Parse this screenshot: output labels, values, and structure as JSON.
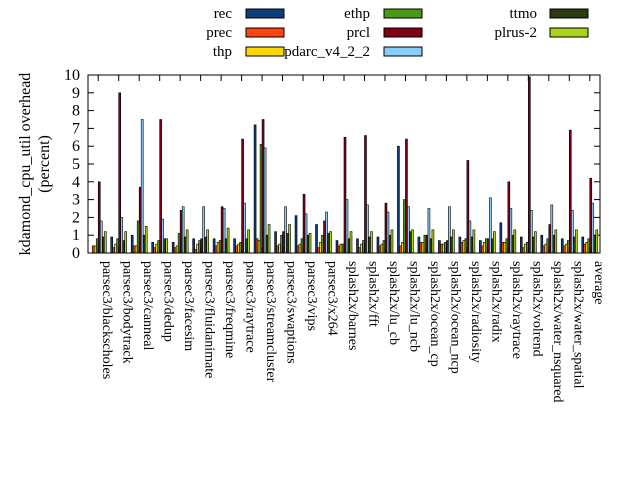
{
  "chart_data": {
    "type": "bar",
    "title": "",
    "xlabel": "",
    "ylabel_lines": [
      "kdamond_cpu_util overhead",
      "(percent)"
    ],
    "ylim": [
      0,
      10
    ],
    "yticks": [
      "0",
      "1",
      "2",
      "3",
      "4",
      "5",
      "6",
      "7",
      "8",
      "9",
      "10"
    ],
    "grid": false,
    "legend_position": "top",
    "categories": [
      "parsec3/blackscholes",
      "parsec3/bodytrack",
      "parsec3/canneal",
      "parsec3/dedup",
      "parsec3/facesim",
      "parsec3/fluidanimate",
      "parsec3/freqmine",
      "parsec3/raytrace",
      "parsec3/streamcluster",
      "parsec3/swaptions",
      "parsec3/vips",
      "parsec3/x264",
      "splash2x/barnes",
      "splash2x/fft",
      "splash2x/lu_cb",
      "splash2x/lu_ncb",
      "splash2x/ocean_cp",
      "splash2x/ocean_ncp",
      "splash2x/radiosity",
      "splash2x/radix",
      "splash2x/raytrace",
      "splash2x/volrend",
      "splash2x/water_nsquared",
      "splash2x/water_spatial",
      "average"
    ],
    "series": [
      {
        "name": "rec",
        "color": "#0b3d7a",
        "values": [
          0.0,
          0.9,
          1.0,
          0.6,
          0.6,
          0.8,
          0.8,
          0.8,
          7.2,
          1.2,
          2.1,
          1.6,
          0.7,
          0.8,
          0.9,
          6.0,
          0.9,
          0.7,
          0.9,
          0.7,
          1.7,
          0.9,
          1.0,
          0.8,
          0.9
        ]
      },
      {
        "name": "prec",
        "color": "#ff4411",
        "values": [
          0.4,
          0.3,
          0.4,
          0.3,
          0.3,
          0.2,
          0.4,
          0.4,
          0.8,
          0.4,
          0.4,
          0.3,
          0.4,
          0.3,
          0.4,
          0.4,
          0.6,
          0.5,
          0.6,
          0.4,
          0.6,
          0.3,
          0.4,
          0.4,
          0.5
        ]
      },
      {
        "name": "thp",
        "color": "#ffd700",
        "values": [
          0.4,
          0.5,
          0.4,
          0.5,
          0.4,
          0.5,
          0.6,
          0.5,
          0.7,
          0.5,
          0.5,
          0.6,
          0.5,
          0.5,
          0.5,
          0.6,
          0.6,
          0.5,
          0.7,
          0.6,
          0.6,
          0.5,
          0.5,
          0.5,
          0.6
        ]
      },
      {
        "name": "ethp",
        "color": "#4a9a1a",
        "values": [
          0.8,
          0.8,
          1.8,
          0.7,
          1.1,
          0.7,
          0.7,
          0.6,
          6.1,
          1.0,
          0.8,
          1.0,
          0.5,
          0.7,
          0.7,
          3.0,
          1.0,
          0.6,
          0.8,
          0.8,
          0.8,
          0.6,
          0.8,
          0.7,
          0.8
        ]
      },
      {
        "name": "prcl",
        "color": "#800018",
        "values": [
          4.0,
          9.0,
          3.7,
          7.5,
          2.4,
          0.8,
          2.6,
          6.4,
          7.5,
          1.2,
          3.3,
          1.8,
          6.5,
          6.6,
          2.8,
          6.4,
          1.0,
          0.7,
          5.2,
          0.8,
          4.0,
          9.9,
          1.6,
          6.9,
          4.2
        ]
      },
      {
        "name": "pdarc_v4_2_2",
        "color": "#87cefa",
        "values": [
          1.8,
          2.0,
          7.5,
          1.9,
          2.6,
          2.6,
          2.5,
          2.8,
          5.9,
          2.6,
          2.2,
          2.3,
          3.0,
          2.7,
          2.3,
          2.6,
          2.5,
          2.6,
          1.8,
          3.1,
          2.5,
          2.4,
          2.7,
          2.4,
          2.8
        ]
      },
      {
        "name": "ttmo",
        "color": "#2b3a10",
        "values": [
          0.9,
          0.7,
          1.0,
          0.8,
          0.9,
          0.9,
          0.8,
          0.8,
          1.0,
          1.1,
          1.0,
          1.1,
          0.8,
          0.9,
          1.0,
          1.2,
          0.8,
          0.9,
          0.9,
          0.8,
          1.0,
          0.9,
          1.0,
          0.9,
          1.0
        ]
      },
      {
        "name": "plrus-2",
        "color": "#a8d41a",
        "values": [
          1.2,
          1.2,
          1.5,
          0.8,
          1.3,
          1.3,
          1.4,
          1.3,
          1.6,
          1.6,
          1.1,
          1.2,
          1.2,
          1.2,
          1.3,
          1.3,
          1.3,
          1.3,
          1.3,
          1.2,
          1.3,
          1.2,
          1.3,
          1.3,
          1.3
        ]
      }
    ]
  }
}
